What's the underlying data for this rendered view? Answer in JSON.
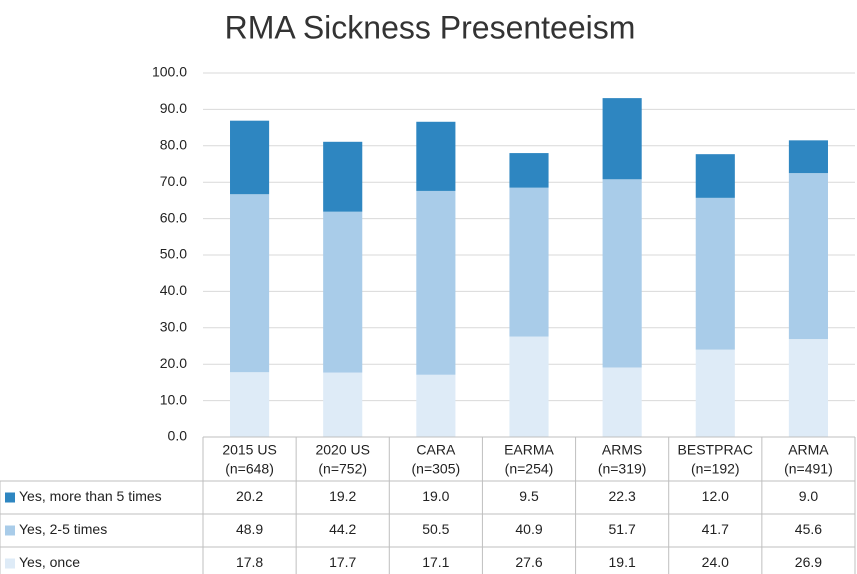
{
  "chart_data": {
    "type": "bar",
    "stacked": true,
    "title": "RMA Sickness Presenteeism",
    "categories": [
      "2015 US",
      "2020 US",
      "CARA",
      "EARMA",
      "ARMS",
      "BESTPRAC",
      "ARMA"
    ],
    "sample_sizes": [
      "(n=648)",
      "(n=752)",
      "(n=305)",
      "(n=254)",
      "(n=319)",
      "(n=192)",
      "(n=491)"
    ],
    "series": [
      {
        "name": "Yes, more than 5 times",
        "color": "#2e86c1",
        "values": [
          20.2,
          19.2,
          19.0,
          9.5,
          22.3,
          12.0,
          9.0
        ],
        "value_labels": [
          "20.2",
          "19.2",
          "19.0",
          "9.5",
          "22.3",
          "12.0",
          "9.0"
        ]
      },
      {
        "name": "Yes, 2-5 times",
        "color": "#a9cce9",
        "values": [
          48.9,
          44.2,
          50.5,
          40.9,
          51.7,
          41.7,
          45.6
        ],
        "value_labels": [
          "48.9",
          "44.2",
          "50.5",
          "40.9",
          "51.7",
          "41.7",
          "45.6"
        ]
      },
      {
        "name": "Yes, once",
        "color": "#deebf7",
        "values": [
          17.8,
          17.7,
          17.1,
          27.6,
          19.1,
          24.0,
          26.9
        ],
        "value_labels": [
          "17.8",
          "17.7",
          "17.1",
          "27.6",
          "19.1",
          "24.0",
          "26.9"
        ]
      }
    ],
    "ylim": [
      0,
      100
    ],
    "yticks": [
      {
        "value": 0,
        "label": "0.0"
      },
      {
        "value": 10,
        "label": "10.0"
      },
      {
        "value": 20,
        "label": "20.0"
      },
      {
        "value": 30,
        "label": "30.0"
      },
      {
        "value": 40,
        "label": "40.0"
      },
      {
        "value": 50,
        "label": "50.0"
      },
      {
        "value": 60,
        "label": "60.0"
      },
      {
        "value": 70,
        "label": "70.0"
      },
      {
        "value": 80,
        "label": "80.0"
      },
      {
        "value": 90,
        "label": "90.0"
      },
      {
        "value": 100,
        "label": "100.0"
      }
    ],
    "grid": true
  }
}
